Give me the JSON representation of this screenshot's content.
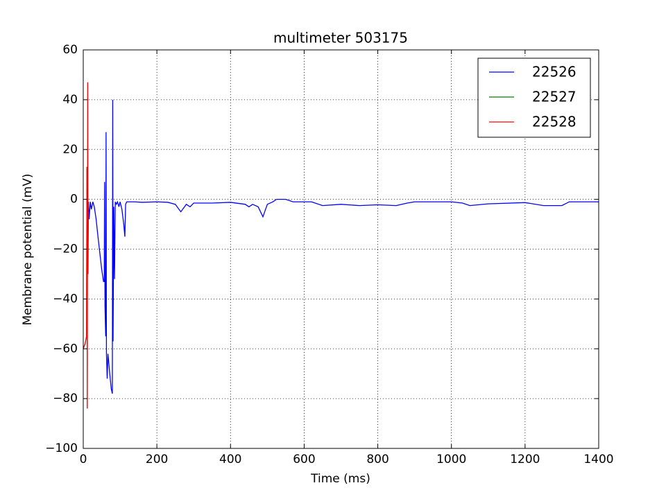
{
  "chart_data": {
    "type": "line",
    "title": "multimeter 503175",
    "xlabel": "Time (ms)",
    "ylabel": "Membrane potential (mV)",
    "xlim": [
      0,
      1400
    ],
    "ylim": [
      -100,
      60
    ],
    "xticks": [
      0,
      200,
      400,
      600,
      800,
      1000,
      1200,
      1400
    ],
    "yticks": [
      {
        "value": -100,
        "label": "−100"
      },
      {
        "value": -80,
        "label": "−80"
      },
      {
        "value": -60,
        "label": "−60"
      },
      {
        "value": -40,
        "label": "−40"
      },
      {
        "value": -20,
        "label": "−20"
      },
      0,
      20,
      40,
      60
    ],
    "grid": true,
    "legend": "upper right",
    "series": [
      {
        "name": "22526",
        "color": "#0000ff",
        "x": [
          12,
          14,
          16,
          19,
          22,
          26,
          30,
          35,
          40,
          50,
          55,
          57,
          58,
          59,
          61,
          62,
          63,
          65,
          67,
          72,
          76,
          79,
          80,
          81,
          83,
          85,
          87,
          90,
          93,
          97,
          100,
          105,
          110,
          113,
          115,
          118,
          140,
          160,
          200,
          230,
          250,
          265,
          280,
          290,
          300,
          350,
          400,
          440,
          450,
          460,
          475,
          488,
          500,
          515,
          525,
          550,
          570,
          620,
          650,
          700,
          750,
          800,
          850,
          880,
          900,
          1000,
          1030,
          1050,
          1100,
          1200,
          1250,
          1300,
          1320,
          1400
        ],
        "values": [
          -30,
          -1,
          -8,
          -1,
          -4,
          -1,
          -3,
          -8,
          -15,
          -28,
          -33,
          -33,
          7,
          -43,
          -55,
          27,
          -62,
          -72,
          -62,
          -70,
          -76,
          -78,
          40,
          -57,
          -3,
          -32,
          -1,
          -2,
          -1,
          -3,
          -1,
          -4,
          -10,
          -15,
          -2,
          -1,
          -1,
          -1.2,
          -1,
          -1.2,
          -2,
          -5,
          -2,
          -3,
          -1.5,
          -1.5,
          -1.2,
          -2,
          -3,
          -2,
          -3,
          -7,
          -2,
          -1,
          0,
          0,
          -1,
          -1,
          -2.5,
          -2,
          -2.5,
          -2.2,
          -2.5,
          -1.5,
          -1,
          -1,
          -1.5,
          -2.5,
          -1.8,
          -1.3,
          -2.5,
          -2.5,
          -1,
          -1
        ]
      },
      {
        "name": "22527",
        "color": "#008000",
        "x": [
          0,
          5,
          9,
          10,
          11
        ],
        "values": [
          -60,
          -58,
          -55,
          13,
          -84
        ]
      },
      {
        "name": "22528",
        "color": "#ff0000",
        "x": [
          0,
          5,
          9,
          10,
          11,
          12,
          13,
          14
        ],
        "values": [
          -60,
          -58,
          -55,
          13,
          -84,
          47,
          -30,
          -5
        ]
      }
    ]
  }
}
